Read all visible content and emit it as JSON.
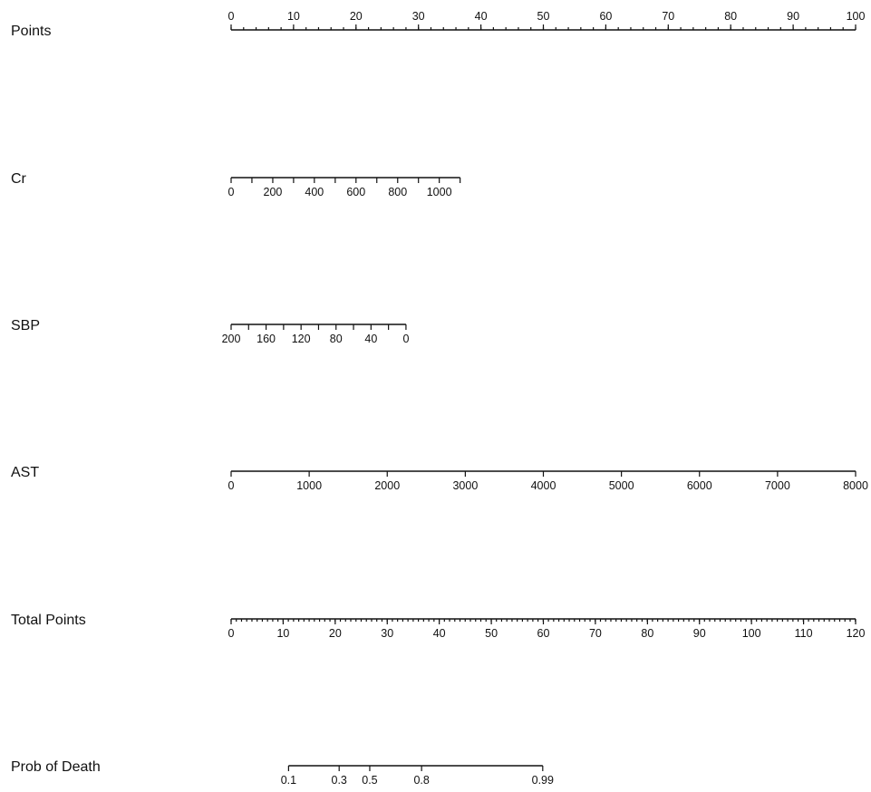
{
  "chart_data": {
    "type": "nomogram",
    "rows": [
      {
        "name": "Points",
        "ticks": [
          {
            "value": 0,
            "label": "0",
            "points": 0
          },
          {
            "value": 10,
            "label": "10",
            "points": 10
          },
          {
            "value": 20,
            "label": "20",
            "points": 20
          },
          {
            "value": 30,
            "label": "30",
            "points": 30
          },
          {
            "value": 40,
            "label": "40",
            "points": 40
          },
          {
            "value": 50,
            "label": "50",
            "points": 50
          },
          {
            "value": 60,
            "label": "60",
            "points": 60
          },
          {
            "value": 70,
            "label": "70",
            "points": 70
          },
          {
            "value": 80,
            "label": "80",
            "points": 80
          },
          {
            "value": 90,
            "label": "90",
            "points": 90
          },
          {
            "value": 100,
            "label": "100",
            "points": 100
          }
        ],
        "minor_step": 2,
        "labels_above": true
      },
      {
        "name": "Cr",
        "ticks": [
          {
            "value": 0,
            "label": "0",
            "points": 0
          },
          {
            "value": 100,
            "label": "",
            "points": 3.33
          },
          {
            "value": 200,
            "label": "200",
            "points": 6.67
          },
          {
            "value": 300,
            "label": "",
            "points": 10
          },
          {
            "value": 400,
            "label": "400",
            "points": 13.33
          },
          {
            "value": 500,
            "label": "",
            "points": 16.67
          },
          {
            "value": 600,
            "label": "600",
            "points": 20
          },
          {
            "value": 700,
            "label": "",
            "points": 23.33
          },
          {
            "value": 800,
            "label": "800",
            "points": 26.67
          },
          {
            "value": 900,
            "label": "",
            "points": 30
          },
          {
            "value": 1000,
            "label": "1000",
            "points": 33.33
          },
          {
            "value": 1100,
            "label": "",
            "points": 36.67
          }
        ],
        "labels_above": false
      },
      {
        "name": "SBP",
        "ticks": [
          {
            "value": 200,
            "label": "200",
            "points": 0
          },
          {
            "value": 180,
            "label": "",
            "points": 2.8
          },
          {
            "value": 160,
            "label": "160",
            "points": 5.6
          },
          {
            "value": 140,
            "label": "",
            "points": 8.4
          },
          {
            "value": 120,
            "label": "120",
            "points": 11.2
          },
          {
            "value": 100,
            "label": "",
            "points": 14
          },
          {
            "value": 80,
            "label": "80",
            "points": 16.8
          },
          {
            "value": 60,
            "label": "",
            "points": 19.6
          },
          {
            "value": 40,
            "label": "40",
            "points": 22.4
          },
          {
            "value": 20,
            "label": "",
            "points": 25.2
          },
          {
            "value": 0,
            "label": "0",
            "points": 28
          }
        ],
        "labels_above": false
      },
      {
        "name": "AST",
        "ticks": [
          {
            "value": 0,
            "label": "0",
            "points": 0
          },
          {
            "value": 1000,
            "label": "1000",
            "points": 12.5
          },
          {
            "value": 2000,
            "label": "2000",
            "points": 25
          },
          {
            "value": 3000,
            "label": "3000",
            "points": 37.5
          },
          {
            "value": 4000,
            "label": "4000",
            "points": 50
          },
          {
            "value": 5000,
            "label": "5000",
            "points": 62.5
          },
          {
            "value": 6000,
            "label": "6000",
            "points": 75
          },
          {
            "value": 7000,
            "label": "7000",
            "points": 87.5
          },
          {
            "value": 8000,
            "label": "8000",
            "points": 100
          }
        ],
        "labels_above": false
      },
      {
        "name": "Total Points",
        "ticks": [
          {
            "value": 0,
            "label": "0",
            "points": 0
          },
          {
            "value": 10,
            "label": "10",
            "points": 8.33
          },
          {
            "value": 20,
            "label": "20",
            "points": 16.67
          },
          {
            "value": 30,
            "label": "30",
            "points": 25
          },
          {
            "value": 40,
            "label": "40",
            "points": 33.33
          },
          {
            "value": 50,
            "label": "50",
            "points": 41.67
          },
          {
            "value": 60,
            "label": "60",
            "points": 50
          },
          {
            "value": 70,
            "label": "70",
            "points": 58.33
          },
          {
            "value": 80,
            "label": "80",
            "points": 66.67
          },
          {
            "value": 90,
            "label": "90",
            "points": 75
          },
          {
            "value": 100,
            "label": "100",
            "points": 83.33
          },
          {
            "value": 110,
            "label": "110",
            "points": 91.67
          },
          {
            "value": 120,
            "label": "120",
            "points": 100
          }
        ],
        "minor_step": 0.833,
        "labels_above": false
      },
      {
        "name": "Prob of Death",
        "ticks": [
          {
            "value": 0.1,
            "label": "0.1",
            "points": 9.2
          },
          {
            "value": 0.3,
            "label": "0.3",
            "points": 17.3
          },
          {
            "value": 0.5,
            "label": "0.5",
            "points": 22.2
          },
          {
            "value": 0.8,
            "label": "0.8",
            "points": 30.5
          },
          {
            "value": 0.99,
            "label": "0.99",
            "points": 49.9
          }
        ],
        "labels_above": false
      }
    ]
  }
}
